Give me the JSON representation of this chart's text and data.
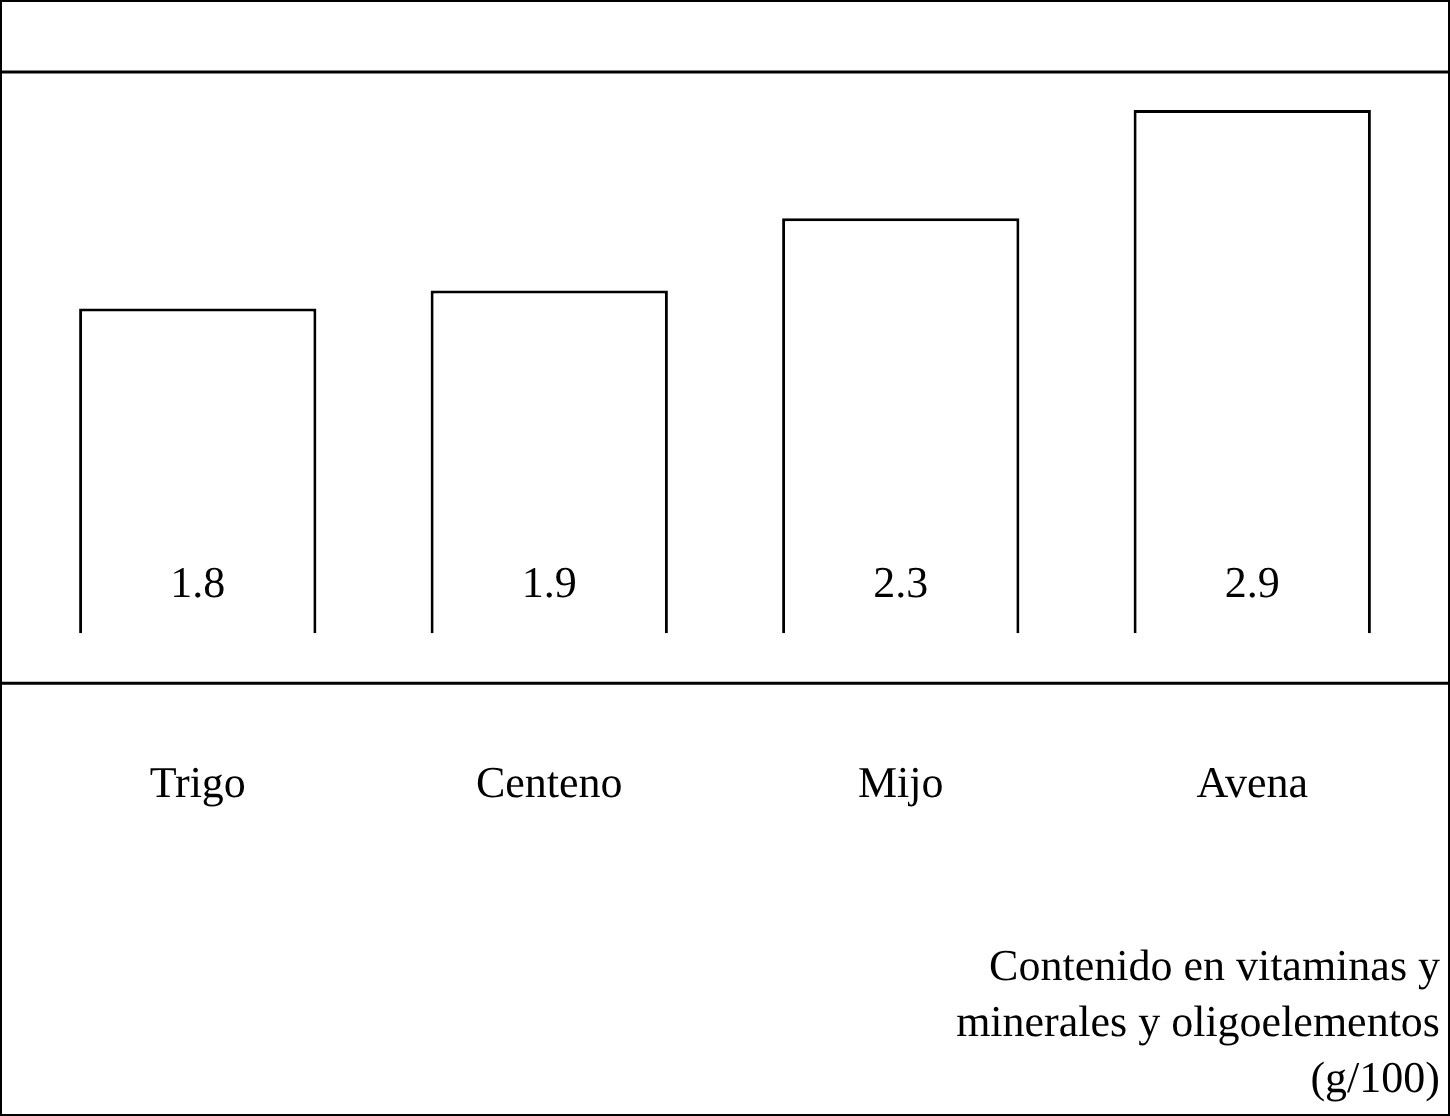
{
  "chart_data": {
    "type": "bar",
    "categories": [
      "Trigo",
      "Centeno",
      "Mijo",
      "Avena"
    ],
    "values": [
      1.8,
      1.9,
      2.3,
      2.9
    ],
    "color": "#ffffff",
    "data_labels": true,
    "legend": false,
    "xlabel": "Contenido en vitaminas y minerales y oligoelementos (g/100)"
  }
}
